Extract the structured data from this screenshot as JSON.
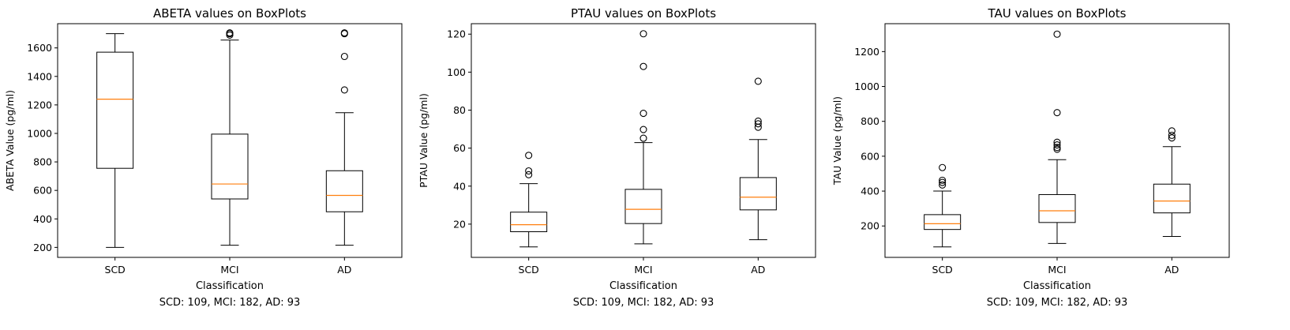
{
  "figure": {
    "background": "#ffffff",
    "box_color": "#000000",
    "median_color": "#ff7f0e"
  },
  "chart_data": [
    {
      "type": "box",
      "title": "ABETA values on BoxPlots",
      "xlabel": "Classification",
      "ylabel": "ABETA Value (pg/ml)",
      "categories": [
        "SCD",
        "MCI",
        "AD"
      ],
      "ylim": [
        130,
        1770
      ],
      "yticks": [
        200,
        400,
        600,
        800,
        1000,
        1200,
        1400,
        1600
      ],
      "caption": "SCD: 109, MCI: 182, AD: 93",
      "boxes": [
        {
          "category": "SCD",
          "whislo": 200,
          "q1": 755,
          "median": 1240,
          "q3": 1570,
          "whishi": 1700,
          "fliers": []
        },
        {
          "category": "MCI",
          "whislo": 215,
          "q1": 540,
          "median": 645,
          "q3": 995,
          "whishi": 1655,
          "fliers": [
            1690,
            1700,
            1705
          ]
        },
        {
          "category": "AD",
          "whislo": 215,
          "q1": 450,
          "median": 565,
          "q3": 738,
          "whishi": 1145,
          "fliers": [
            1305,
            1540,
            1700,
            1705
          ]
        }
      ]
    },
    {
      "type": "box",
      "title": "PTAU values on BoxPlots",
      "xlabel": "Classification",
      "ylabel": "PTAU Value (pg/ml)",
      "categories": [
        "SCD",
        "MCI",
        "AD"
      ],
      "ylim": [
        2.5,
        125.5
      ],
      "yticks": [
        20,
        40,
        60,
        80,
        100,
        120
      ],
      "caption": "SCD: 109, MCI: 182, AD: 93",
      "boxes": [
        {
          "category": "SCD",
          "whislo": 8,
          "q1": 16,
          "median": 19.7,
          "q3": 26.3,
          "whishi": 41.3,
          "fliers": [
            46,
            48,
            56.2
          ]
        },
        {
          "category": "MCI",
          "whislo": 9.6,
          "q1": 20.3,
          "median": 27.8,
          "q3": 38.3,
          "whishi": 62.9,
          "fliers": [
            65.2,
            69.8,
            78.3,
            103,
            120.2
          ]
        },
        {
          "category": "AD",
          "whislo": 11.8,
          "q1": 27.5,
          "median": 34.2,
          "q3": 44.5,
          "whishi": 64.5,
          "fliers": [
            71,
            72.8,
            74.2,
            95.2
          ]
        }
      ]
    },
    {
      "type": "box",
      "title": "TAU values on BoxPlots",
      "xlabel": "Classification",
      "ylabel": "TAU Value (pg/ml)",
      "categories": [
        "SCD",
        "MCI",
        "AD"
      ],
      "ylim": [
        20,
        1360
      ],
      "yticks": [
        200,
        400,
        600,
        800,
        1000,
        1200
      ],
      "caption": "SCD: 109, MCI: 182, AD: 93",
      "boxes": [
        {
          "category": "SCD",
          "whislo": 80,
          "q1": 180,
          "median": 213,
          "q3": 265,
          "whishi": 400,
          "fliers": [
            435,
            450,
            462,
            535
          ]
        },
        {
          "category": "MCI",
          "whislo": 100,
          "q1": 220,
          "median": 287,
          "q3": 380,
          "whishi": 580,
          "fliers": [
            640,
            650,
            665,
            680,
            850,
            1300
          ]
        },
        {
          "category": "AD",
          "whislo": 140,
          "q1": 275,
          "median": 343,
          "q3": 440,
          "whishi": 655,
          "fliers": [
            705,
            720,
            745
          ]
        }
      ]
    }
  ]
}
